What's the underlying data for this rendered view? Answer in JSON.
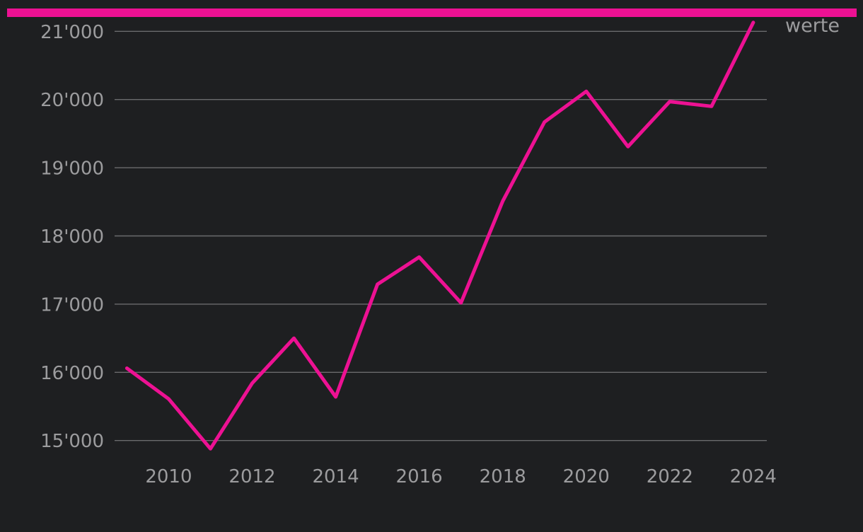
{
  "page": {
    "background": "#1e1f21"
  },
  "accent_bar": {
    "color": "#ed1193"
  },
  "legend": {
    "label": "werte"
  },
  "chart_data": {
    "type": "line",
    "title": "",
    "xlabel": "",
    "ylabel": "",
    "x": [
      2009,
      2010,
      2011,
      2012,
      2013,
      2014,
      2015,
      2016,
      2017,
      2018,
      2019,
      2020,
      2021,
      2022,
      2023,
      2024
    ],
    "series": [
      {
        "name": "werte",
        "color": "#ed1193",
        "values": [
          16060,
          15610,
          14880,
          15840,
          16500,
          15640,
          17290,
          17690,
          17020,
          18510,
          19670,
          20120,
          19310,
          19970,
          19900,
          21130
        ]
      }
    ],
    "x_ticks": [
      2010,
      2012,
      2014,
      2016,
      2018,
      2020,
      2022,
      2024
    ],
    "x_tick_labels": [
      "2010",
      "2012",
      "2014",
      "2016",
      "2018",
      "2020",
      "2022",
      "2024"
    ],
    "y_ticks": [
      15000,
      16000,
      17000,
      18000,
      19000,
      20000,
      21000
    ],
    "y_tick_labels": [
      "15'000",
      "16'000",
      "17'000",
      "18'000",
      "19'000",
      "20'000",
      "21'000"
    ],
    "xlim": [
      2009,
      2024
    ],
    "ylim": [
      14750,
      21200
    ],
    "grid": true,
    "legend_position": "top-right",
    "colors": {
      "background": "#1e1f21",
      "grid": "#6b6b6d",
      "text": "#9c9c9e",
      "accent": "#ed1193"
    }
  }
}
